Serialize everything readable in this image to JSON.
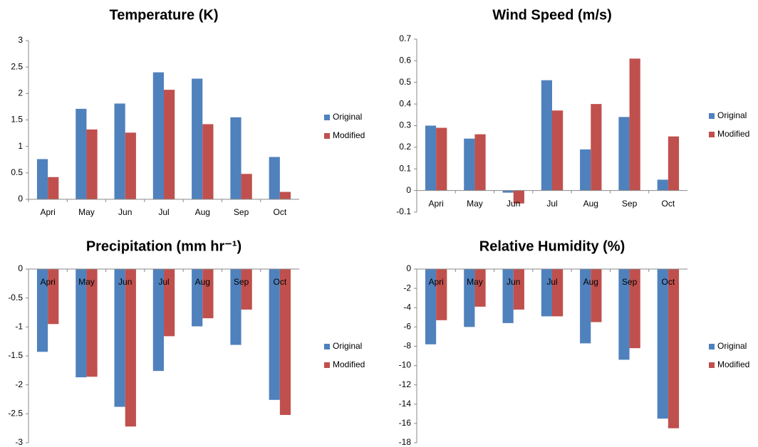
{
  "chart_data": [
    {
      "type": "bar",
      "title": "Temperature (K)",
      "categories": [
        "Apri",
        "May",
        "Jun",
        "Jul",
        "Aug",
        "Sep",
        "Oct"
      ],
      "series": [
        {
          "name": "Original",
          "color": "#4f81bd",
          "values": [
            0.76,
            1.71,
            1.81,
            2.4,
            2.28,
            1.55,
            0.8
          ]
        },
        {
          "name": "Modified",
          "color": "#c0504d",
          "values": [
            0.42,
            1.32,
            1.26,
            2.07,
            1.42,
            0.48,
            0.14
          ]
        }
      ],
      "ylim": [
        0,
        3
      ],
      "yticks": [
        0,
        0.5,
        1,
        1.5,
        2,
        2.5,
        3
      ],
      "legend": "right"
    },
    {
      "type": "bar",
      "title": "Wind Speed (m/s)",
      "categories": [
        "Apri",
        "May",
        "Jun",
        "Jul",
        "Aug",
        "Sep",
        "Oct"
      ],
      "series": [
        {
          "name": "Original",
          "color": "#4f81bd",
          "values": [
            0.3,
            0.24,
            -0.01,
            0.51,
            0.19,
            0.34,
            0.05
          ]
        },
        {
          "name": "Modified",
          "color": "#c0504d",
          "values": [
            0.29,
            0.26,
            -0.06,
            0.37,
            0.4,
            0.61,
            0.25
          ]
        }
      ],
      "ylim": [
        -0.1,
        0.7
      ],
      "yticks": [
        -0.1,
        0,
        0.1,
        0.2,
        0.3,
        0.4,
        0.5,
        0.6,
        0.7
      ],
      "legend": "right"
    },
    {
      "type": "bar",
      "title": "Precipitation (mm hr⁻¹)",
      "categories": [
        "Apri",
        "May",
        "Jun",
        "Jul",
        "Aug",
        "Sep",
        "Oct"
      ],
      "series": [
        {
          "name": "Original",
          "color": "#4f81bd",
          "values": [
            -1.43,
            -1.87,
            -2.38,
            -1.76,
            -0.99,
            -1.31,
            -2.26
          ]
        },
        {
          "name": "Modified",
          "color": "#c0504d",
          "values": [
            -0.95,
            -1.86,
            -2.72,
            -1.16,
            -0.85,
            -0.7,
            -2.52
          ]
        }
      ],
      "ylim": [
        -3,
        0
      ],
      "yticks": [
        0,
        -0.5,
        -1,
        -1.5,
        -2,
        -2.5,
        -3
      ],
      "legend": "right"
    },
    {
      "type": "bar",
      "title": "Relative Humidity (%)",
      "categories": [
        "Apri",
        "May",
        "Jun",
        "Jul",
        "Aug",
        "Sep",
        "Oct"
      ],
      "series": [
        {
          "name": "Original",
          "color": "#4f81bd",
          "values": [
            -7.8,
            -6.0,
            -5.6,
            -4.9,
            -7.7,
            -9.4,
            -15.5
          ]
        },
        {
          "name": "Modified",
          "color": "#c0504d",
          "values": [
            -5.3,
            -3.9,
            -4.2,
            -4.9,
            -5.5,
            -8.2,
            -16.5
          ]
        }
      ],
      "ylim": [
        -18,
        0
      ],
      "yticks": [
        0,
        -2,
        -4,
        -6,
        -8,
        -10,
        -12,
        -14,
        -16,
        -18
      ],
      "legend": "right"
    }
  ]
}
